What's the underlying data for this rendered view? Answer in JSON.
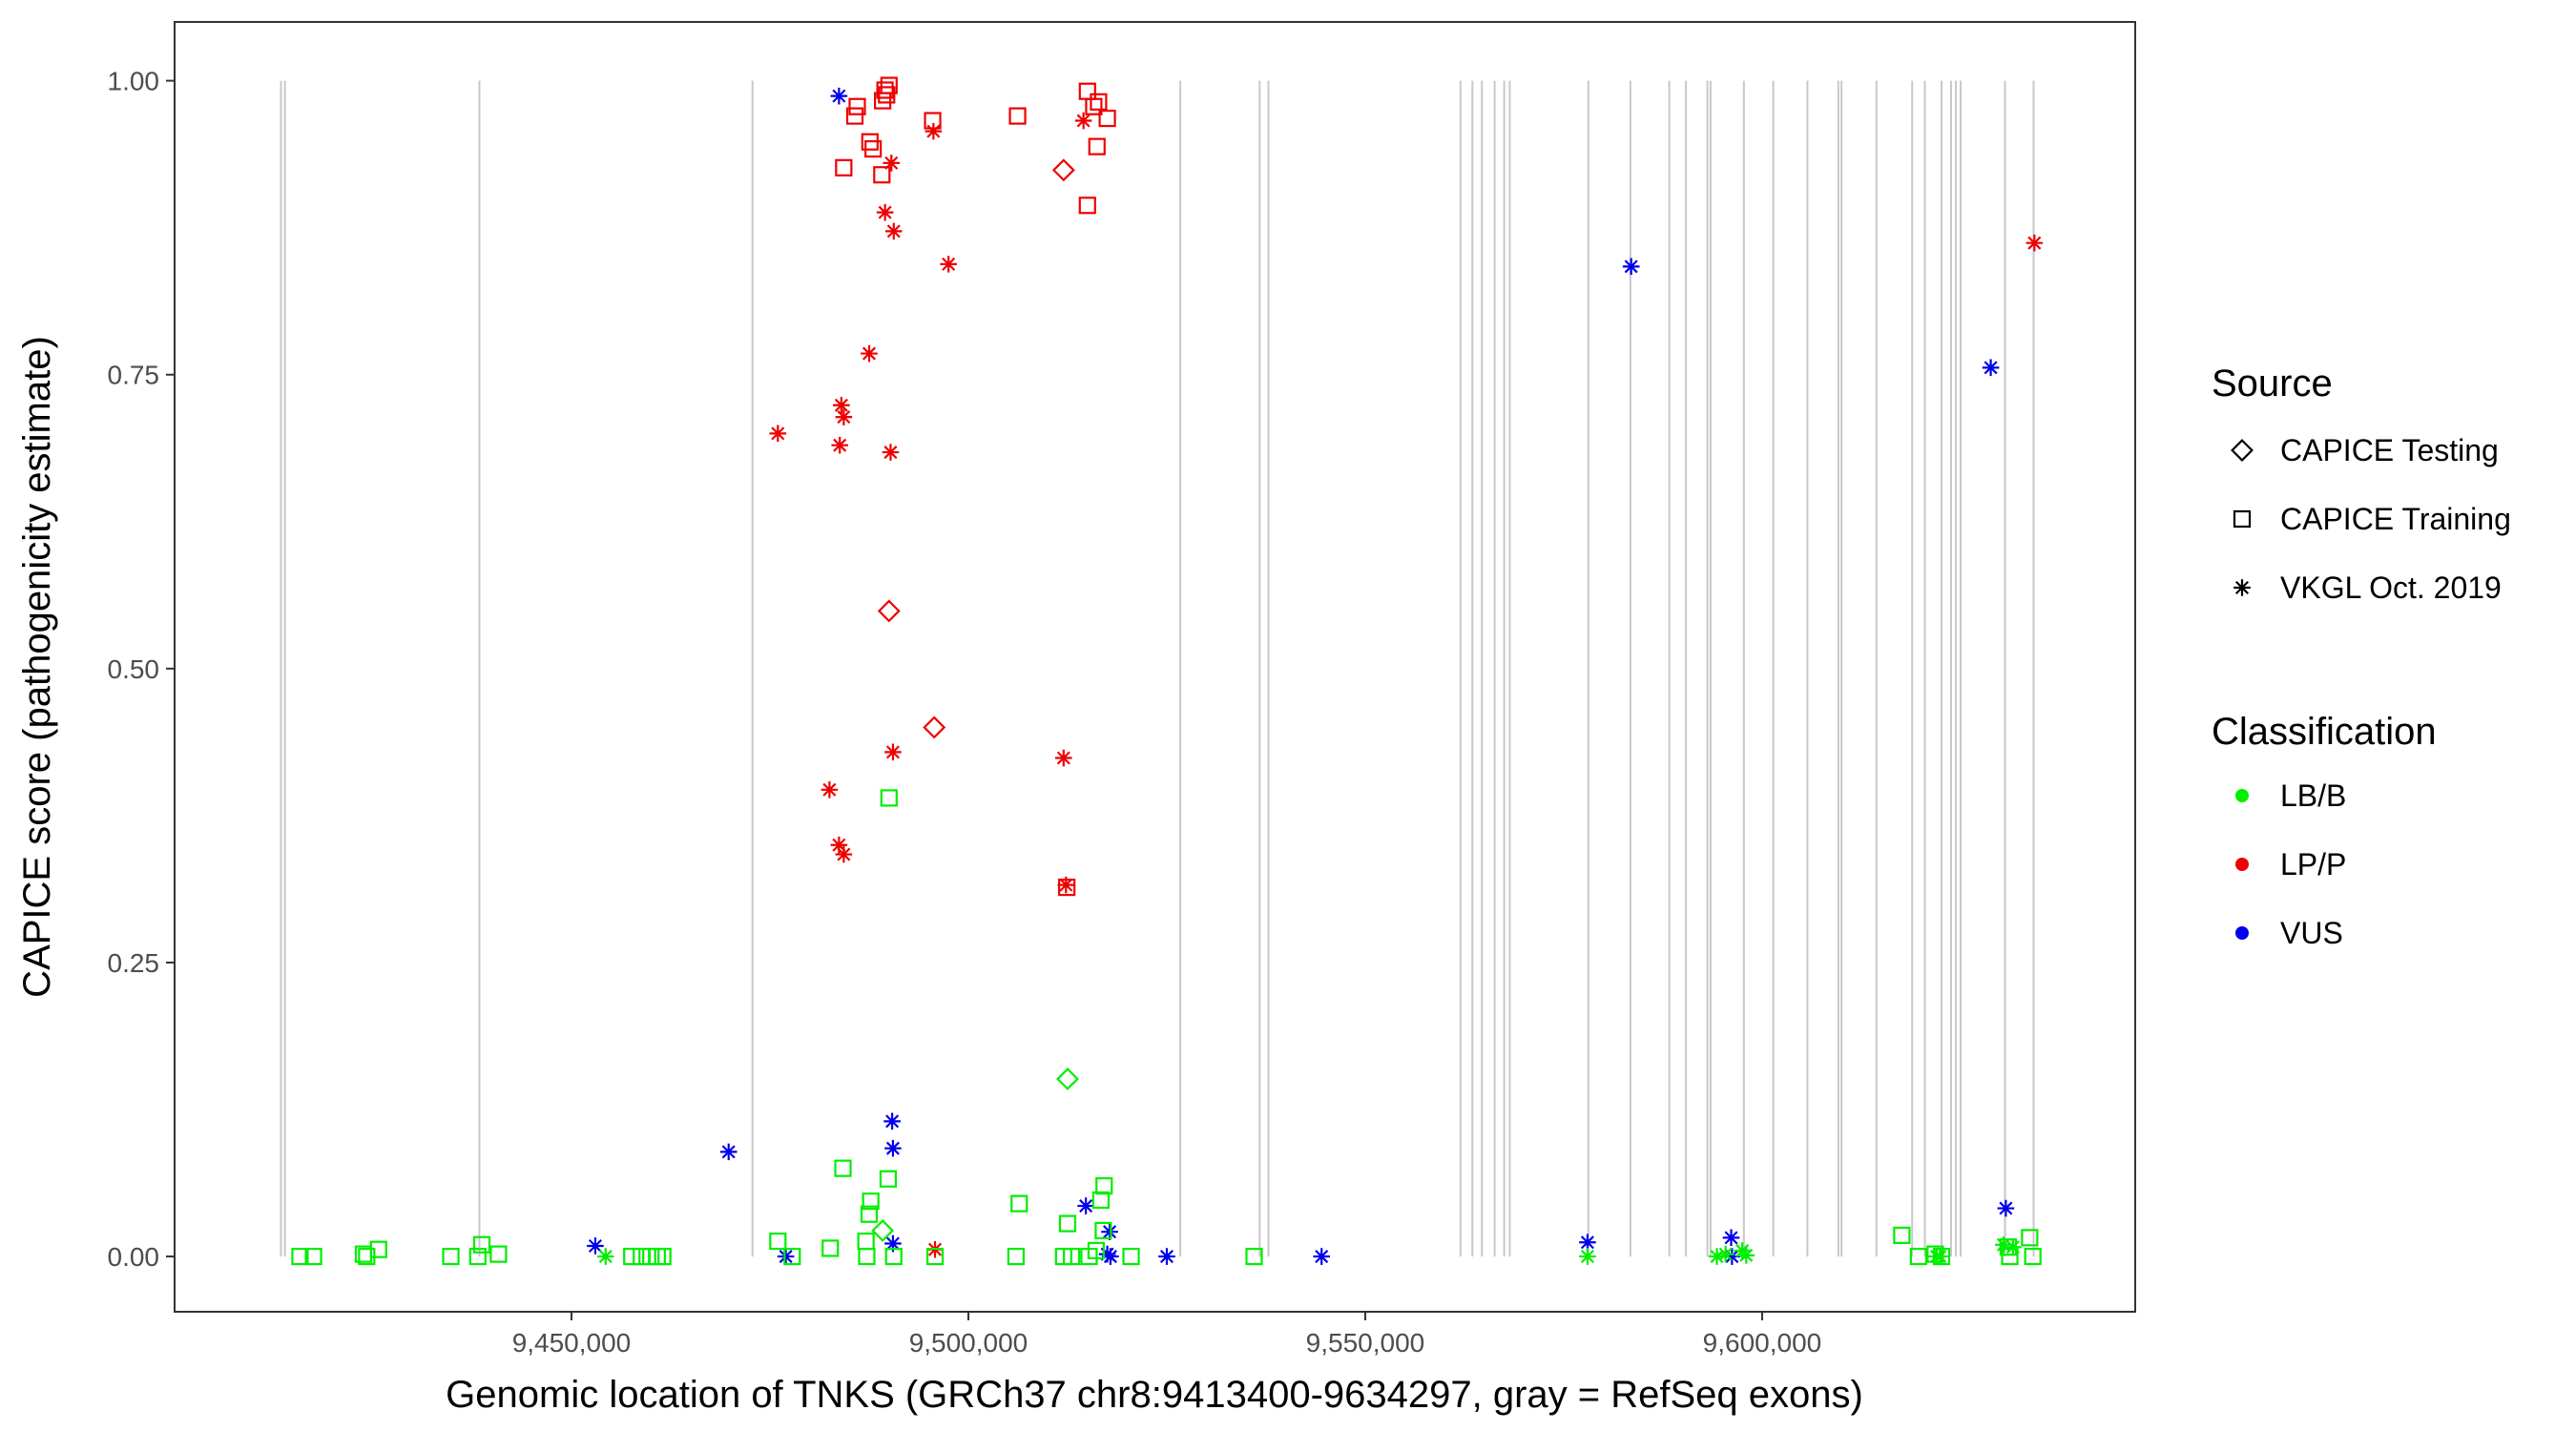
{
  "chart_data": {
    "type": "scatter",
    "title": "",
    "xlabel": "Genomic location of TNKS (GRCh37 chr8:9413400-9634297, gray = RefSeq exons)",
    "ylabel": "CAPICE score (pathogenicity estimate)",
    "xlim": [
      9400000,
      9647000
    ],
    "ylim": [
      -0.047,
      1.05
    ],
    "x_ticks": [
      9450000,
      9500000,
      9550000,
      9600000
    ],
    "x_tick_labels": [
      "9,450,000",
      "9,500,000",
      "9,550,000",
      "9,600,000"
    ],
    "y_ticks": [
      0,
      0.25,
      0.5,
      0.75,
      1
    ],
    "y_tick_labels": [
      "0.00",
      "0.25",
      "0.50",
      "0.75",
      "1.00"
    ],
    "grid": false,
    "exons": [
      9413400,
      9413900,
      9438400,
      9472800,
      9526700,
      9536700,
      9537800,
      9562000,
      9563500,
      9564700,
      9566300,
      9567500,
      9568200,
      9578100,
      9583400,
      9588300,
      9590400,
      9593100,
      9593500,
      9597700,
      9601400,
      9605700,
      9609600,
      9610000,
      9614400,
      9618900,
      9620500,
      9622600,
      9623800,
      9624400,
      9625000,
      9630600,
      9634200
    ],
    "legend": {
      "position": "right",
      "source_title": "Source",
      "source_items": [
        {
          "label": "CAPICE Testing",
          "shape": "diamond"
        },
        {
          "label": "CAPICE Training",
          "shape": "square"
        },
        {
          "label": "VKGL Oct. 2019",
          "shape": "asterisk"
        }
      ],
      "class_title": "Classification",
      "class_items": [
        {
          "label": "LB/B",
          "color": "#00ee00"
        },
        {
          "label": "LP/P",
          "color": "#ee0000"
        },
        {
          "label": "VUS",
          "color": "#0000ee"
        }
      ]
    },
    "series": [
      {
        "name": "LP/P - CAPICE Training",
        "classification": "LP/P",
        "source": "CAPICE Training",
        "color": "#ee0000",
        "shape": "square",
        "points": [
          [
            9484300,
            0.926
          ],
          [
            9485700,
            0.97
          ],
          [
            9486000,
            0.978
          ],
          [
            9487600,
            0.948
          ],
          [
            9488000,
            0.942
          ],
          [
            9489100,
            0.92
          ],
          [
            9489200,
            0.983
          ],
          [
            9489500,
            0.992
          ],
          [
            9489700,
            0.988
          ],
          [
            9490000,
            0.996
          ],
          [
            9495500,
            0.966
          ],
          [
            9506200,
            0.97
          ],
          [
            9515000,
            0.894
          ],
          [
            9515000,
            0.991
          ],
          [
            9515800,
            0.978
          ],
          [
            9516200,
            0.944
          ],
          [
            9516400,
            0.982
          ],
          [
            9517500,
            0.968
          ],
          [
            9512400,
            0.314
          ]
        ]
      },
      {
        "name": "LP/P - CAPICE Testing",
        "classification": "LP/P",
        "source": "CAPICE Testing",
        "color": "#ee0000",
        "shape": "diamond",
        "points": [
          [
            9512000,
            0.924
          ],
          [
            9490000,
            0.549
          ],
          [
            9495700,
            0.45
          ]
        ]
      },
      {
        "name": "LP/P - VKGL Oct. 2019",
        "classification": "LP/P",
        "source": "VKGL Oct. 2019",
        "color": "#ee0000",
        "shape": "asterisk",
        "points": [
          [
            9490300,
            0.93
          ],
          [
            9495600,
            0.957
          ],
          [
            9514500,
            0.966
          ],
          [
            9489500,
            0.888
          ],
          [
            9490600,
            0.872
          ],
          [
            9497500,
            0.844
          ],
          [
            9487500,
            0.768
          ],
          [
            9484000,
            0.724
          ],
          [
            9484300,
            0.714
          ],
          [
            9476000,
            0.7
          ],
          [
            9483800,
            0.69
          ],
          [
            9490200,
            0.684
          ],
          [
            9490500,
            0.429
          ],
          [
            9512000,
            0.424
          ],
          [
            9482500,
            0.397
          ],
          [
            9483700,
            0.35
          ],
          [
            9484300,
            0.342
          ],
          [
            9512300,
            0.316
          ],
          [
            9495800,
            0.006
          ],
          [
            9634300,
            0.862
          ]
        ]
      },
      {
        "name": "VUS - VKGL Oct. 2019",
        "classification": "VUS",
        "source": "VKGL Oct. 2019",
        "color": "#0000ee",
        "shape": "asterisk",
        "points": [
          [
            9483700,
            0.987
          ],
          [
            9583500,
            0.842
          ],
          [
            9628800,
            0.756
          ],
          [
            9469800,
            0.089
          ],
          [
            9490400,
            0.115
          ],
          [
            9490500,
            0.092
          ],
          [
            9514800,
            0.043
          ],
          [
            9517800,
            0.021
          ],
          [
            9490500,
            0.011
          ],
          [
            9453000,
            0.009
          ],
          [
            9477000,
            0.0
          ],
          [
            9517500,
            0.002
          ],
          [
            9517900,
            0.0
          ],
          [
            9525000,
            0.0
          ],
          [
            9544500,
            0.0
          ],
          [
            9578000,
            0.012
          ],
          [
            9596100,
            0.016
          ],
          [
            9596200,
            0.0
          ],
          [
            9630700,
            0.041
          ]
        ]
      },
      {
        "name": "LB/B - CAPICE Training",
        "classification": "LB/B",
        "source": "CAPICE Training",
        "color": "#00ee00",
        "shape": "square",
        "points": [
          [
            9490000,
            0.39
          ],
          [
            9484200,
            0.075
          ],
          [
            9489900,
            0.066
          ],
          [
            9517100,
            0.06
          ],
          [
            9516700,
            0.048
          ],
          [
            9506400,
            0.045
          ],
          [
            9487700,
            0.047
          ],
          [
            9487500,
            0.036
          ],
          [
            9512500,
            0.028
          ],
          [
            9517000,
            0.022
          ],
          [
            9476000,
            0.013
          ],
          [
            9487100,
            0.013
          ],
          [
            9482600,
            0.007
          ],
          [
            9438700,
            0.01
          ],
          [
            9425700,
            0.006
          ],
          [
            9415800,
            0.0
          ],
          [
            9417500,
            0.0
          ],
          [
            9423800,
            0.002
          ],
          [
            9424200,
            0.0
          ],
          [
            9434800,
            0.0
          ],
          [
            9438200,
            0.0
          ],
          [
            9440800,
            0.002
          ],
          [
            9457600,
            0.0
          ],
          [
            9458800,
            0.0
          ],
          [
            9460000,
            0.0
          ],
          [
            9460800,
            0.0
          ],
          [
            9461500,
            0.0
          ],
          [
            9477800,
            0.0
          ],
          [
            9487200,
            0.0
          ],
          [
            9490600,
            0.0
          ],
          [
            9495800,
            0.0
          ],
          [
            9506000,
            0.0
          ],
          [
            9512000,
            0.0
          ],
          [
            9513000,
            0.0
          ],
          [
            9515200,
            0.0
          ],
          [
            9516100,
            0.005
          ],
          [
            9520500,
            0.0
          ],
          [
            9536000,
            0.0
          ],
          [
            9617600,
            0.018
          ],
          [
            9619700,
            0.0
          ],
          [
            9621800,
            0.002
          ],
          [
            9622600,
            0.0
          ],
          [
            9631000,
            0.008
          ],
          [
            9631200,
            0.0
          ],
          [
            9633700,
            0.016
          ],
          [
            9634100,
            0.0
          ]
        ]
      },
      {
        "name": "LB/B - CAPICE Testing",
        "classification": "LB/B",
        "source": "CAPICE Testing",
        "color": "#00ee00",
        "shape": "diamond",
        "points": [
          [
            9512500,
            0.151
          ],
          [
            9489200,
            0.022
          ]
        ]
      },
      {
        "name": "LB/B - VKGL Oct. 2019",
        "classification": "LB/B",
        "source": "VKGL Oct. 2019",
        "color": "#00ee00",
        "shape": "asterisk",
        "points": [
          [
            9454300,
            0.0
          ],
          [
            9578000,
            0.0
          ],
          [
            9594300,
            0.0
          ],
          [
            9595400,
            0.002
          ],
          [
            9597500,
            0.005
          ],
          [
            9598000,
            0.001
          ],
          [
            9622000,
            0.0
          ],
          [
            9622400,
            0.0
          ],
          [
            9630400,
            0.01
          ],
          [
            9631600,
            0.008
          ]
        ]
      }
    ]
  }
}
